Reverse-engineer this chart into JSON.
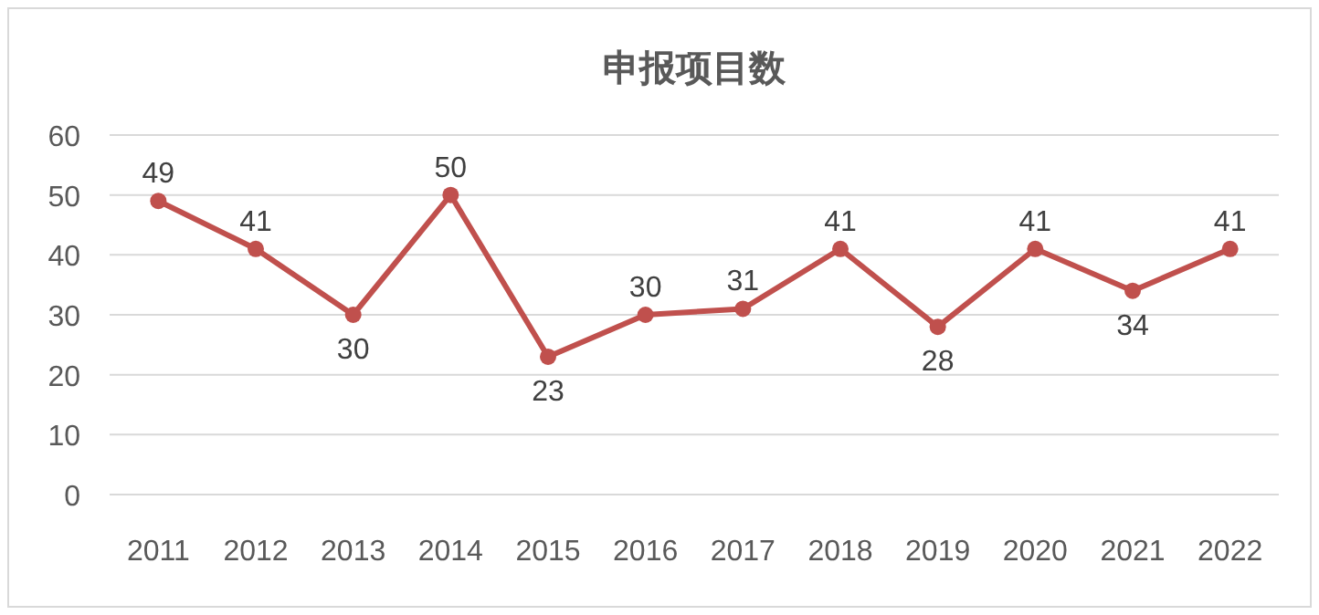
{
  "chart_data": {
    "type": "line",
    "title": "申报项目数",
    "categories": [
      "2011",
      "2012",
      "2013",
      "2014",
      "2015",
      "2016",
      "2017",
      "2018",
      "2019",
      "2020",
      "2021",
      "2022"
    ],
    "series": [
      {
        "color": "#c0504d",
        "values": [
          49,
          41,
          30,
          50,
          23,
          30,
          31,
          41,
          28,
          41,
          34,
          41
        ]
      }
    ],
    "ylim": [
      0,
      60
    ],
    "yticks": [
      0,
      10,
      20,
      30,
      40,
      50,
      60
    ],
    "grid": "y",
    "marker": "circle",
    "line_style": "solid",
    "data_labels": true
  }
}
